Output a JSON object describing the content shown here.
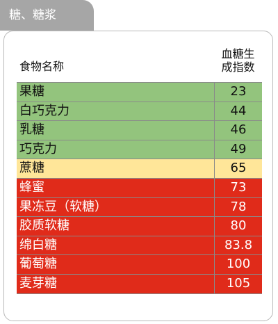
{
  "tab": {
    "label": "糖、糖浆"
  },
  "header": {
    "name_label": "食物名称",
    "gi_label_line1": "血糖生",
    "gi_label_line2": "成指数"
  },
  "colors": {
    "low": "#93c47d",
    "medium": "#ffe699",
    "high": "#e02b1a"
  },
  "rows": [
    {
      "name": "果糖",
      "value": "23",
      "level": "low"
    },
    {
      "name": "白巧克力",
      "value": "44",
      "level": "low"
    },
    {
      "name": "乳糖",
      "value": "46",
      "level": "low"
    },
    {
      "name": "巧克力",
      "value": "49",
      "level": "low"
    },
    {
      "name": "蔗糖",
      "value": "65",
      "level": "medium"
    },
    {
      "name": "蜂蜜",
      "value": "73",
      "level": "high"
    },
    {
      "name": "果冻豆（软糖）",
      "value": "78",
      "level": "high"
    },
    {
      "name": "胶质软糖",
      "value": "80",
      "level": "high"
    },
    {
      "name": "绵白糖",
      "value": "83.8",
      "level": "high"
    },
    {
      "name": "葡萄糖",
      "value": "100",
      "level": "high"
    },
    {
      "name": "麦芽糖",
      "value": "105",
      "level": "high"
    }
  ]
}
